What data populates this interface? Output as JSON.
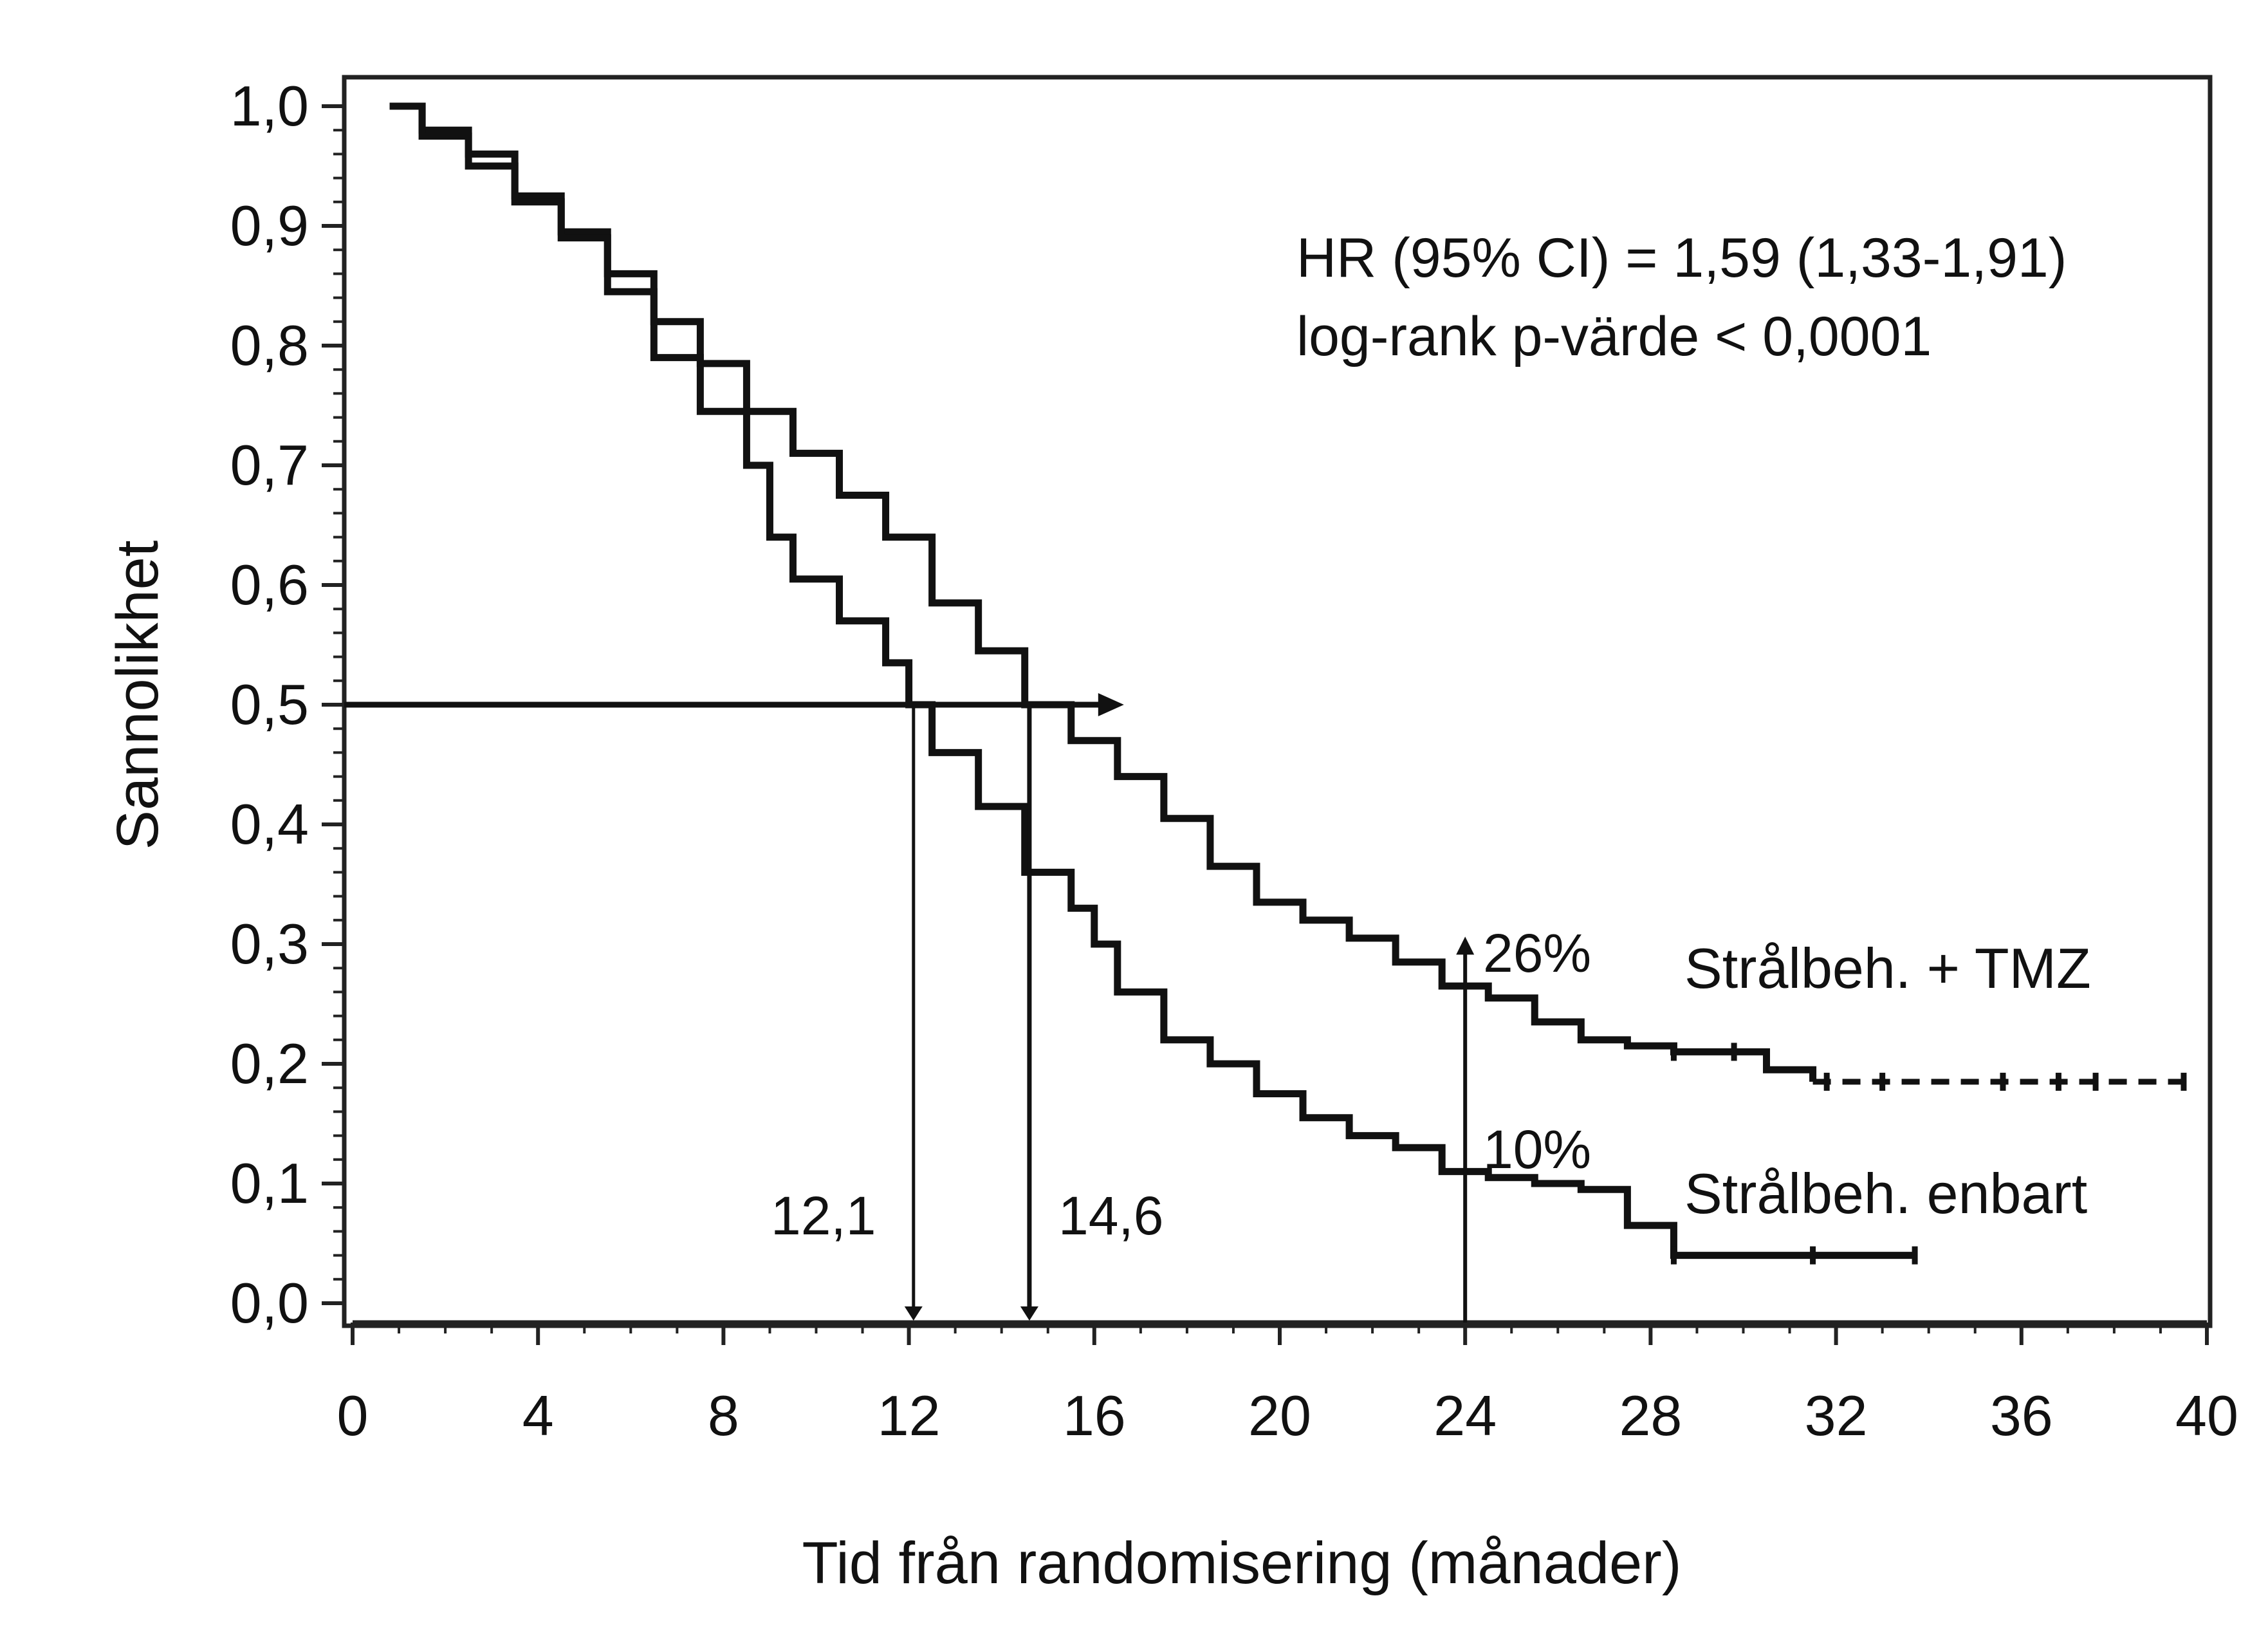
{
  "chart_data": {
    "type": "line",
    "subtype": "kaplan-meier",
    "xlabel": "Tid från randomisering (månader)",
    "ylabel": "Sannolikhet",
    "xlim": [
      0,
      40
    ],
    "ylim": [
      0,
      1.0
    ],
    "x_ticks": [
      0,
      4,
      8,
      12,
      16,
      20,
      24,
      28,
      32,
      36,
      40
    ],
    "x_tick_labels": [
      "0",
      "4",
      "8",
      "12",
      "16",
      "20",
      "24",
      "28",
      "32",
      "36",
      "40"
    ],
    "y_ticks": [
      0.0,
      0.1,
      0.2,
      0.3,
      0.4,
      0.5,
      0.6,
      0.7,
      0.8,
      0.9,
      1.0
    ],
    "y_tick_labels": [
      "0,0",
      "0,1",
      "0,2",
      "0,3",
      "0,4",
      "0,5",
      "0,6",
      "0,7",
      "0,8",
      "0,9",
      "1,0"
    ],
    "stats": {
      "line1": "HR (95% CI) = 1,59 (1,33-1,91)",
      "line2": "log-rank p-värde < 0,0001"
    },
    "series": [
      {
        "name": "Strålbeh. + TMZ",
        "style": "solid-then-dashed",
        "points": [
          [
            0.8,
            1.0
          ],
          [
            1.5,
            0.98
          ],
          [
            2.5,
            0.96
          ],
          [
            3.5,
            0.925
          ],
          [
            4.5,
            0.895
          ],
          [
            5.5,
            0.86
          ],
          [
            6.5,
            0.82
          ],
          [
            7.5,
            0.785
          ],
          [
            8.5,
            0.745
          ],
          [
            9.5,
            0.71
          ],
          [
            10.5,
            0.675
          ],
          [
            11.5,
            0.64
          ],
          [
            12.5,
            0.585
          ],
          [
            13.5,
            0.545
          ],
          [
            14.5,
            0.5
          ],
          [
            15.5,
            0.47
          ],
          [
            16.5,
            0.44
          ],
          [
            17.5,
            0.405
          ],
          [
            18.5,
            0.365
          ],
          [
            19.5,
            0.335
          ],
          [
            20.5,
            0.32
          ],
          [
            21.5,
            0.305
          ],
          [
            22.5,
            0.285
          ],
          [
            23.5,
            0.265
          ],
          [
            24.5,
            0.255
          ],
          [
            25.5,
            0.235
          ],
          [
            26.5,
            0.22
          ],
          [
            27.5,
            0.215
          ],
          [
            28.5,
            0.21
          ],
          [
            29.5,
            0.21
          ],
          [
            30.5,
            0.195
          ],
          [
            31.5,
            0.185
          ],
          [
            33,
            0.185
          ],
          [
            35,
            0.185
          ],
          [
            37,
            0.185
          ],
          [
            39.5,
            0.185
          ]
        ],
        "censor_marks": [
          28.5,
          29.8,
          31.8,
          33.0,
          35.6,
          36.8,
          37.6,
          39.5
        ]
      },
      {
        "name": "Strålbeh. enbart",
        "style": "solid",
        "points": [
          [
            0.8,
            1.0
          ],
          [
            1.5,
            0.975
          ],
          [
            2.5,
            0.95
          ],
          [
            3.5,
            0.92
          ],
          [
            4.5,
            0.89
          ],
          [
            5.5,
            0.845
          ],
          [
            6.5,
            0.79
          ],
          [
            7.5,
            0.745
          ],
          [
            8.5,
            0.7
          ],
          [
            9.0,
            0.64
          ],
          [
            9.5,
            0.605
          ],
          [
            10.5,
            0.57
          ],
          [
            11.5,
            0.535
          ],
          [
            12.0,
            0.5
          ],
          [
            12.5,
            0.46
          ],
          [
            13.5,
            0.415
          ],
          [
            14.5,
            0.36
          ],
          [
            15.5,
            0.33
          ],
          [
            16.0,
            0.3
          ],
          [
            16.5,
            0.26
          ],
          [
            17.5,
            0.22
          ],
          [
            18.5,
            0.2
          ],
          [
            19.5,
            0.175
          ],
          [
            20.5,
            0.155
          ],
          [
            21.5,
            0.14
          ],
          [
            22.5,
            0.13
          ],
          [
            23.5,
            0.11
          ],
          [
            24.5,
            0.105
          ],
          [
            25.5,
            0.1
          ],
          [
            26.5,
            0.095
          ],
          [
            27.5,
            0.065
          ],
          [
            28.5,
            0.04
          ],
          [
            30,
            0.04
          ],
          [
            32,
            0.04
          ],
          [
            33.7,
            0.04
          ]
        ],
        "censor_marks": [
          28.5,
          31.5,
          33.7
        ]
      }
    ],
    "reference_lines": {
      "median_y": 0.5,
      "median_arrow_end_x": 16.5,
      "median_times": [
        12.1,
        14.6
      ],
      "median_labels": [
        "12,1",
        "14,6"
      ],
      "two_year_x": 24,
      "two_year_labels": [
        "26%",
        "10%"
      ],
      "two_year_values": [
        0.26,
        0.1
      ]
    }
  }
}
